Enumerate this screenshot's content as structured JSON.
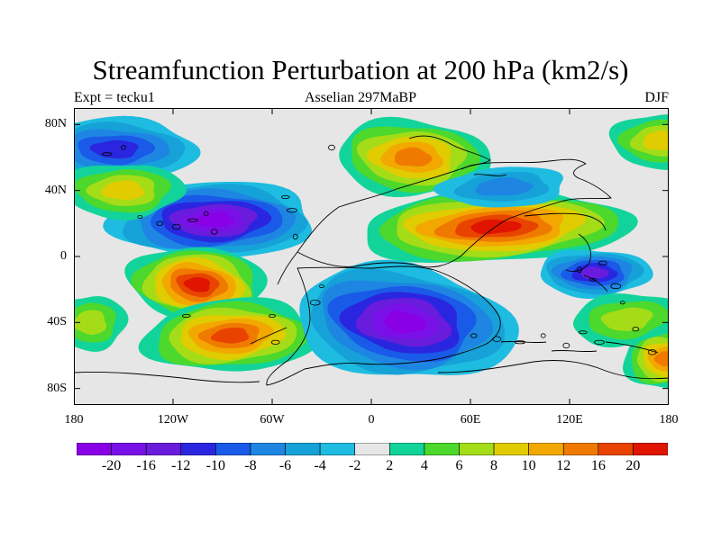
{
  "title": "Streamfunction Perturbation at 200 hPa (km2/s)",
  "subtitle_left": "Expt = tecku1",
  "subtitle_center": "Asselian 297MaBP",
  "subtitle_right": "DJF",
  "lat_ticks": [
    {
      "label": "80N",
      "lat": 80
    },
    {
      "label": "40N",
      "lat": 40
    },
    {
      "label": "0",
      "lat": 0
    },
    {
      "label": "40S",
      "lat": -40
    },
    {
      "label": "80S",
      "lat": -80
    }
  ],
  "lon_ticks": [
    {
      "label": "180",
      "lon": -180
    },
    {
      "label": "120W",
      "lon": -120
    },
    {
      "label": "60W",
      "lon": -60
    },
    {
      "label": "0",
      "lon": 0
    },
    {
      "label": "60E",
      "lon": 60
    },
    {
      "label": "120E",
      "lon": 120
    },
    {
      "label": "180",
      "lon": 180
    }
  ],
  "colorbar": {
    "labels": [
      "-20",
      "-16",
      "-12",
      "-10",
      "-8",
      "-6",
      "-4",
      "-2",
      "2",
      "4",
      "6",
      "8",
      "10",
      "12",
      "16",
      "20"
    ],
    "colors": [
      "#8a00e6",
      "#7a10e8",
      "#6a1cdd",
      "#2a26e0",
      "#1a5ae8",
      "#1e86e2",
      "#16a2d8",
      "#1ebce0",
      "#e6e6e6",
      "#12d49a",
      "#4cd82c",
      "#a4dc18",
      "#e0cc00",
      "#f2a800",
      "#f07a00",
      "#e84400",
      "#e01400"
    ]
  },
  "chart_data": {
    "type": "heatmap",
    "title": "Streamfunction Perturbation at 200 hPa (km2/s)",
    "units": "km2/s",
    "xlim": [
      -180,
      180
    ],
    "ylim": [
      -90,
      90
    ],
    "levels": [
      -20,
      -16,
      -12,
      -10,
      -8,
      -6,
      -4,
      -2,
      2,
      4,
      6,
      8,
      10,
      12,
      16,
      20
    ],
    "features": [
      {
        "lon": -155,
        "lat": 65,
        "value": -10
      },
      {
        "lon": 25,
        "lat": 60,
        "value": 14
      },
      {
        "lon": 175,
        "lat": 70,
        "value": 8
      },
      {
        "lon": -95,
        "lat": 22,
        "value": -20
      },
      {
        "lon": 75,
        "lat": 18,
        "value": 20
      },
      {
        "lon": 135,
        "lat": -10,
        "value": -12
      },
      {
        "lon": -105,
        "lat": -17,
        "value": 20
      },
      {
        "lon": -85,
        "lat": -48,
        "value": 18
      },
      {
        "lon": 20,
        "lat": -40,
        "value": -20
      },
      {
        "lon": -150,
        "lat": 40,
        "value": 8
      },
      {
        "lon": 80,
        "lat": 42,
        "value": -6
      },
      {
        "lon": 178,
        "lat": -62,
        "value": 14
      },
      {
        "lon": 155,
        "lat": -38,
        "value": 6
      },
      {
        "lon": -170,
        "lat": -40,
        "value": 6
      }
    ]
  }
}
